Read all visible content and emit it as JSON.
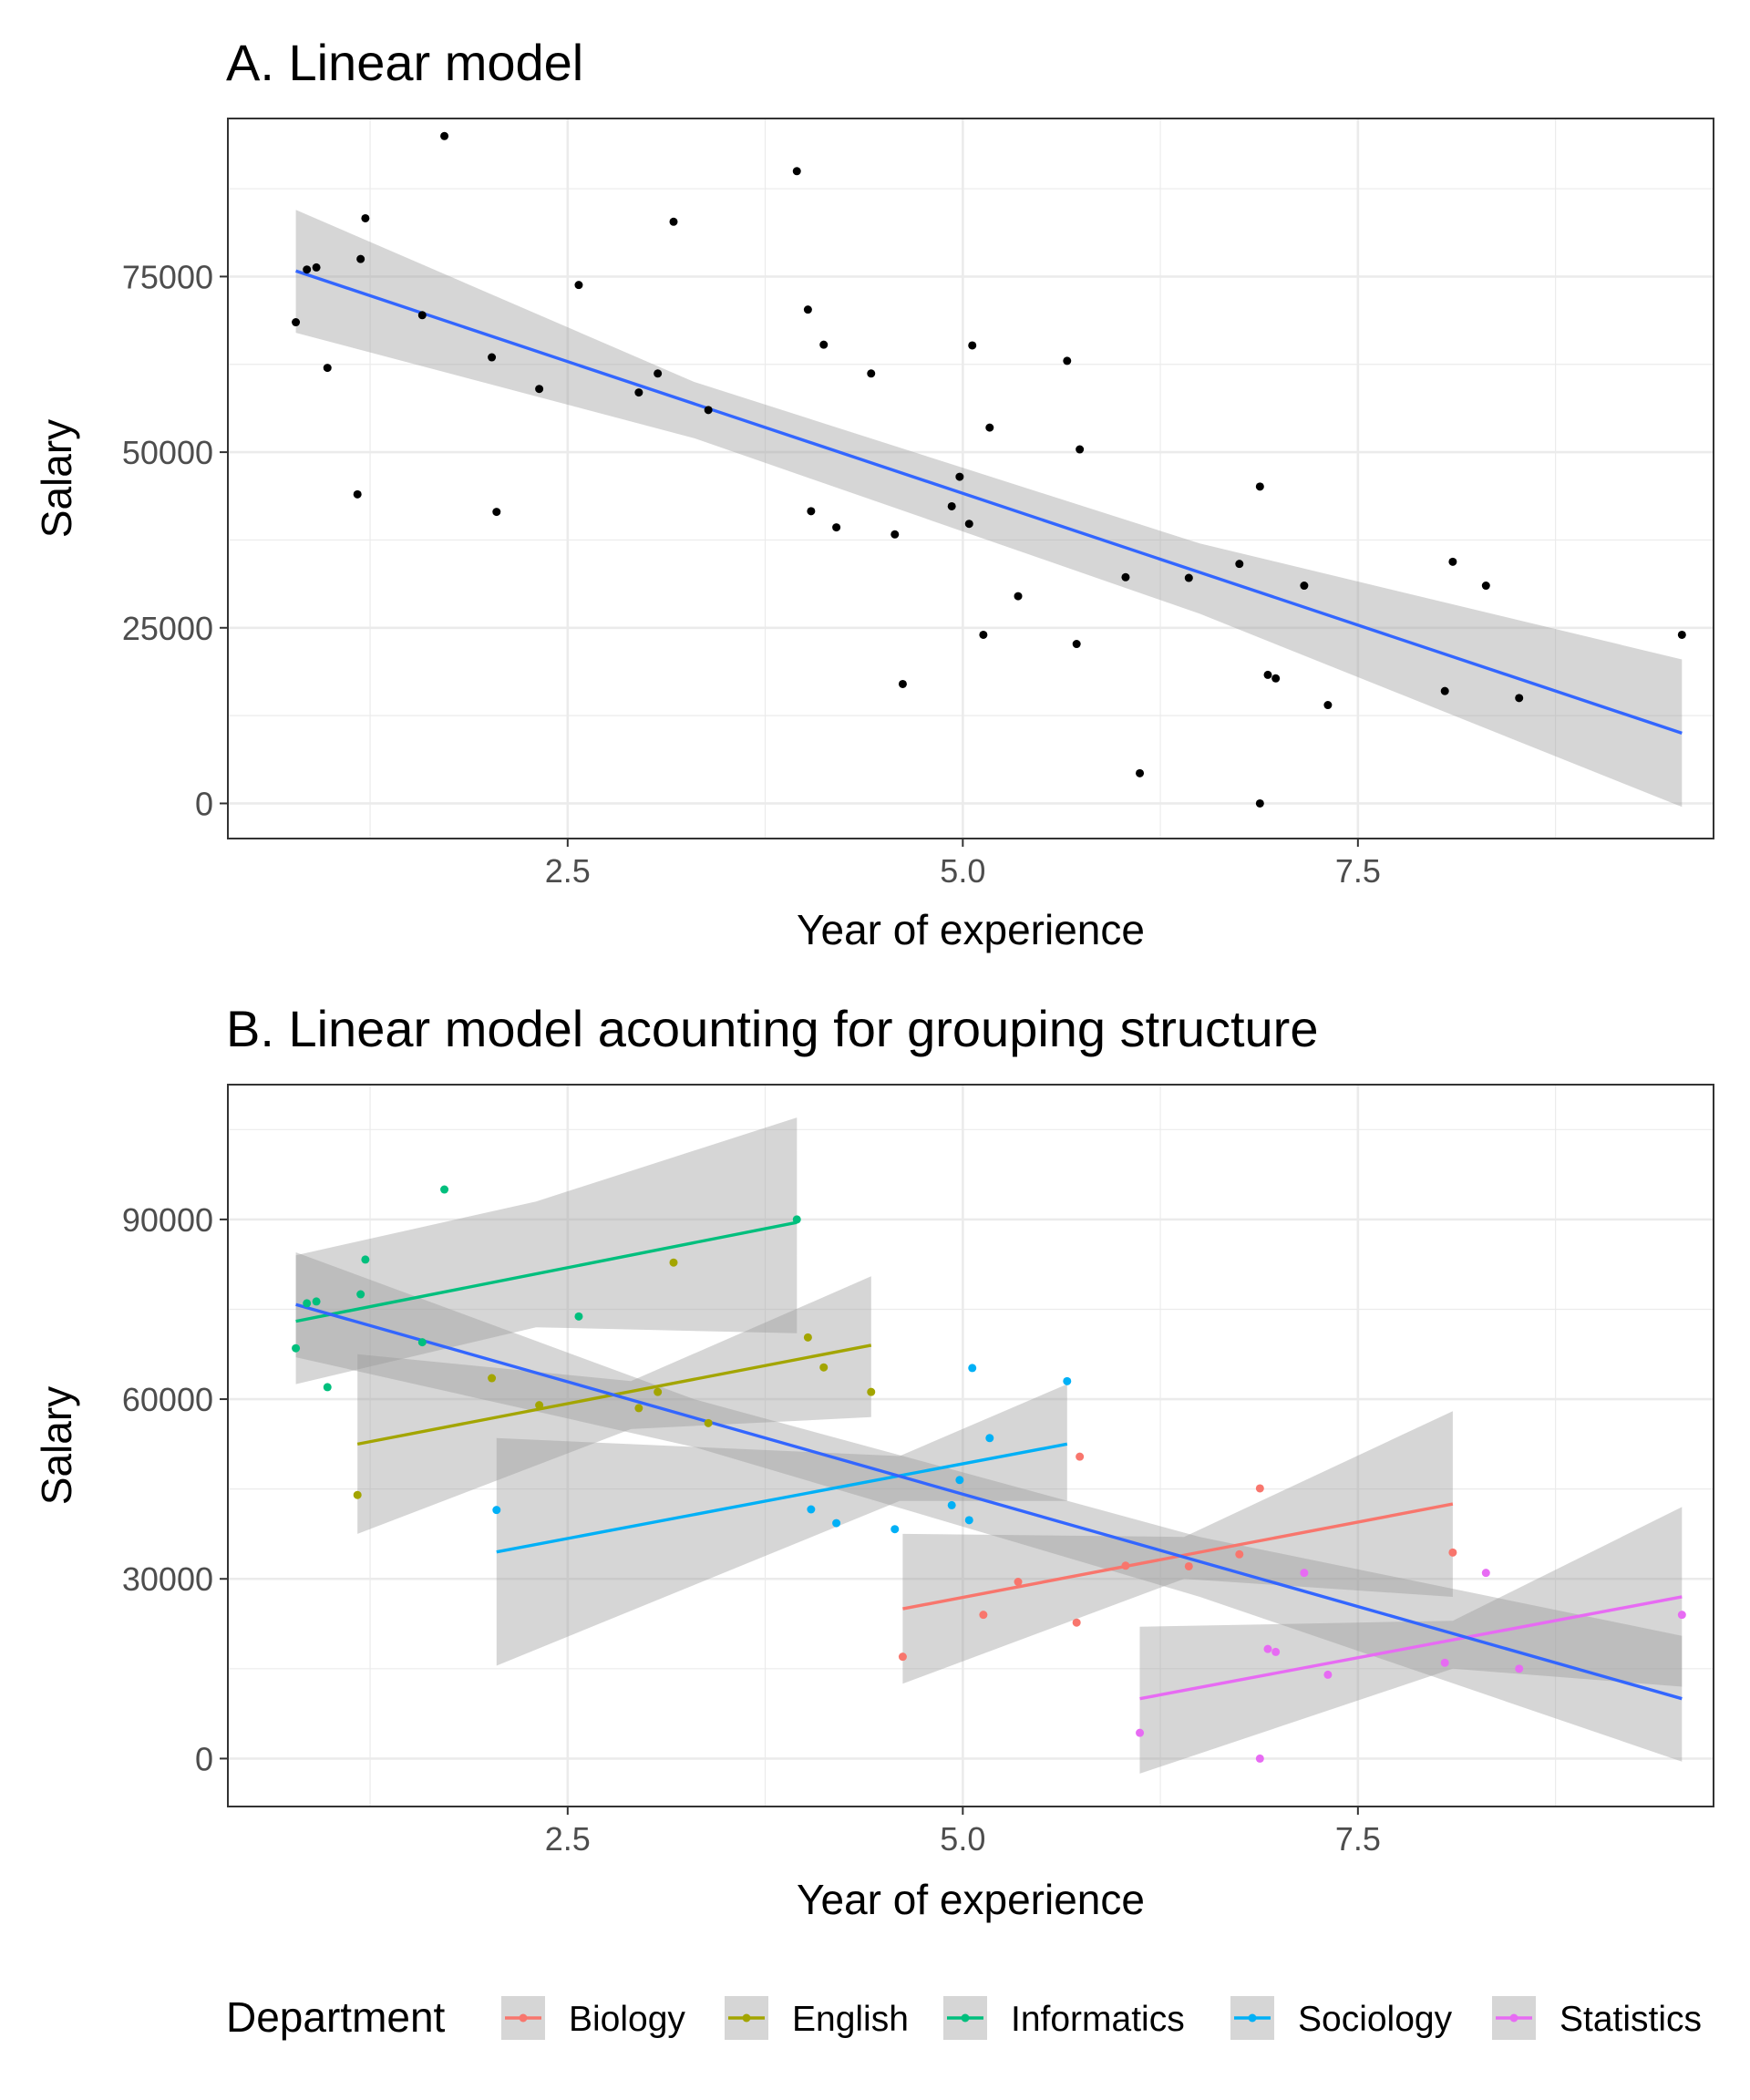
{
  "chart_data": [
    {
      "type": "scatter",
      "panel": "A",
      "title": "A. Linear model",
      "xlabel": "Year of experience",
      "ylabel": "Salary",
      "xlim": [
        0.35,
        9.75
      ],
      "ylim": [
        -5000,
        97500
      ],
      "xticks": [
        2.5,
        5.0,
        7.5
      ],
      "xtick_labels": [
        "2.5",
        "5.0",
        "7.5"
      ],
      "yticks": [
        0,
        25000,
        50000,
        75000
      ],
      "ytick_labels": [
        "0",
        "25000",
        "50000",
        "75000"
      ],
      "grid": true,
      "points": [
        {
          "x": 0.78,
          "y": 68500,
          "dept": "Informatics"
        },
        {
          "x": 0.85,
          "y": 76000,
          "dept": "Informatics"
        },
        {
          "x": 0.91,
          "y": 76300,
          "dept": "Informatics"
        },
        {
          "x": 0.98,
          "y": 62000,
          "dept": "Informatics"
        },
        {
          "x": 1.17,
          "y": 44000,
          "dept": "English"
        },
        {
          "x": 1.19,
          "y": 77500,
          "dept": "Informatics"
        },
        {
          "x": 1.22,
          "y": 83300,
          "dept": "Informatics"
        },
        {
          "x": 1.58,
          "y": 69500,
          "dept": "Informatics"
        },
        {
          "x": 1.72,
          "y": 95000,
          "dept": "Informatics"
        },
        {
          "x": 2.02,
          "y": 63500,
          "dept": "English"
        },
        {
          "x": 2.05,
          "y": 41500,
          "dept": "Sociology"
        },
        {
          "x": 2.32,
          "y": 59000,
          "dept": "English"
        },
        {
          "x": 2.57,
          "y": 73800,
          "dept": "Informatics"
        },
        {
          "x": 2.95,
          "y": 58500,
          "dept": "English"
        },
        {
          "x": 3.07,
          "y": 61200,
          "dept": "English"
        },
        {
          "x": 3.17,
          "y": 82800,
          "dept": "English"
        },
        {
          "x": 3.39,
          "y": 56000,
          "dept": "English"
        },
        {
          "x": 3.95,
          "y": 90000,
          "dept": "Informatics"
        },
        {
          "x": 4.02,
          "y": 70300,
          "dept": "English"
        },
        {
          "x": 4.04,
          "y": 41600,
          "dept": "Sociology"
        },
        {
          "x": 4.12,
          "y": 65300,
          "dept": "English"
        },
        {
          "x": 4.2,
          "y": 39300,
          "dept": "Sociology"
        },
        {
          "x": 4.42,
          "y": 61200,
          "dept": "English"
        },
        {
          "x": 4.57,
          "y": 38300,
          "dept": "Sociology"
        },
        {
          "x": 4.62,
          "y": 17000,
          "dept": "Biology"
        },
        {
          "x": 4.93,
          "y": 42300,
          "dept": "Sociology"
        },
        {
          "x": 4.98,
          "y": 46500,
          "dept": "Sociology"
        },
        {
          "x": 5.04,
          "y": 39800,
          "dept": "Sociology"
        },
        {
          "x": 5.06,
          "y": 65200,
          "dept": "Sociology"
        },
        {
          "x": 5.13,
          "y": 24000,
          "dept": "Biology"
        },
        {
          "x": 5.17,
          "y": 53500,
          "dept": "Sociology"
        },
        {
          "x": 5.35,
          "y": 29500,
          "dept": "Biology"
        },
        {
          "x": 5.66,
          "y": 63000,
          "dept": "Sociology"
        },
        {
          "x": 5.72,
          "y": 22700,
          "dept": "Biology"
        },
        {
          "x": 5.74,
          "y": 50400,
          "dept": "Biology"
        },
        {
          "x": 6.03,
          "y": 32200,
          "dept": "Biology"
        },
        {
          "x": 6.12,
          "y": 4300,
          "dept": "Statistics"
        },
        {
          "x": 6.43,
          "y": 32100,
          "dept": "Biology"
        },
        {
          "x": 6.75,
          "y": 34100,
          "dept": "Biology"
        },
        {
          "x": 6.88,
          "y": 45100,
          "dept": "Biology"
        },
        {
          "x": 6.88,
          "y": 0,
          "dept": "Statistics"
        },
        {
          "x": 6.93,
          "y": 18300,
          "dept": "Statistics"
        },
        {
          "x": 6.98,
          "y": 17800,
          "dept": "Statistics"
        },
        {
          "x": 7.16,
          "y": 31000,
          "dept": "Statistics"
        },
        {
          "x": 7.31,
          "y": 14000,
          "dept": "Statistics"
        },
        {
          "x": 8.05,
          "y": 16000,
          "dept": "Statistics"
        },
        {
          "x": 8.1,
          "y": 34400,
          "dept": "Biology"
        },
        {
          "x": 8.31,
          "y": 31000,
          "dept": "Statistics"
        },
        {
          "x": 8.52,
          "y": 15000,
          "dept": "Statistics"
        },
        {
          "x": 9.55,
          "y": 24000,
          "dept": "Statistics"
        }
      ],
      "fits": [
        {
          "name": "overall",
          "color": "#3366ff",
          "x": [
            0.78,
            9.55
          ],
          "y": [
            75800,
            10000
          ],
          "ribbon": {
            "x": [
              0.78,
              3.3,
              6.5,
              9.55
            ],
            "lower": [
              67000,
              52000,
              27000,
              -500
            ],
            "upper": [
              84500,
              60000,
              37000,
              20500
            ]
          }
        }
      ]
    },
    {
      "type": "scatter",
      "panel": "B",
      "title": "B. Linear model acounting for grouping structure",
      "xlabel": "Year of experience",
      "ylabel": "Salary",
      "xlim": [
        0.35,
        9.75
      ],
      "ylim": [
        -8000,
        112500
      ],
      "xticks": [
        2.5,
        5.0,
        7.5
      ],
      "xtick_labels": [
        "2.5",
        "5.0",
        "7.5"
      ],
      "yticks": [
        0,
        30000,
        60000,
        90000
      ],
      "ytick_labels": [
        "0",
        "30000",
        "60000",
        "90000"
      ],
      "grid": true,
      "legend_title": "Department",
      "legend_position": "bottom",
      "series": [
        {
          "name": "Biology",
          "color": "#f8766d"
        },
        {
          "name": "English",
          "color": "#a3a500"
        },
        {
          "name": "Informatics",
          "color": "#00bf7d"
        },
        {
          "name": "Sociology",
          "color": "#00b0f6"
        },
        {
          "name": "Statistics",
          "color": "#e76bf3"
        }
      ],
      "fits": [
        {
          "name": "Informatics",
          "color": "#00bf7d",
          "x": [
            0.78,
            3.95
          ],
          "y": [
            73000,
            89500
          ],
          "ribbon": {
            "x": [
              0.78,
              2.3,
              3.95
            ],
            "lower": [
              62500,
              72000,
              71000
            ],
            "upper": [
              84000,
              93000,
              107000
            ]
          }
        },
        {
          "name": "English",
          "color": "#a3a500",
          "x": [
            1.17,
            4.42
          ],
          "y": [
            52500,
            69000
          ],
          "ribbon": {
            "x": [
              1.17,
              2.9,
              4.42
            ],
            "lower": [
              37500,
              55000,
              57000
            ],
            "upper": [
              67500,
              63000,
              80500
            ]
          }
        },
        {
          "name": "Sociology",
          "color": "#00b0f6",
          "x": [
            2.05,
            5.66
          ],
          "y": [
            34500,
            52500
          ],
          "ribbon": {
            "x": [
              2.05,
              4.6,
              5.66
            ],
            "lower": [
              15500,
              43000,
              43000
            ],
            "upper": [
              53500,
              50500,
              62500
            ]
          }
        },
        {
          "name": "Biology",
          "color": "#f8766d",
          "x": [
            4.62,
            8.1
          ],
          "y": [
            25000,
            42500
          ],
          "ribbon": {
            "x": [
              4.62,
              6.4,
              8.1
            ],
            "lower": [
              12500,
              30000,
              27000
            ],
            "upper": [
              37500,
              37000,
              58000
            ]
          }
        },
        {
          "name": "Statistics",
          "color": "#e76bf3",
          "x": [
            6.12,
            9.55
          ],
          "y": [
            10000,
            27000
          ],
          "ribbon": {
            "x": [
              6.12,
              8.1,
              9.55
            ],
            "lower": [
              -2500,
              15000,
              12000
            ],
            "upper": [
              22000,
              23000,
              42000
            ]
          }
        },
        {
          "name": "overall",
          "color": "#3366ff",
          "x": [
            0.78,
            9.55
          ],
          "y": [
            75800,
            10000
          ],
          "ribbon": {
            "x": [
              0.78,
              3.3,
              6.5,
              9.55
            ],
            "lower": [
              67000,
              52000,
              27000,
              -500
            ],
            "upper": [
              84500,
              60000,
              37000,
              20500
            ]
          }
        }
      ]
    }
  ]
}
